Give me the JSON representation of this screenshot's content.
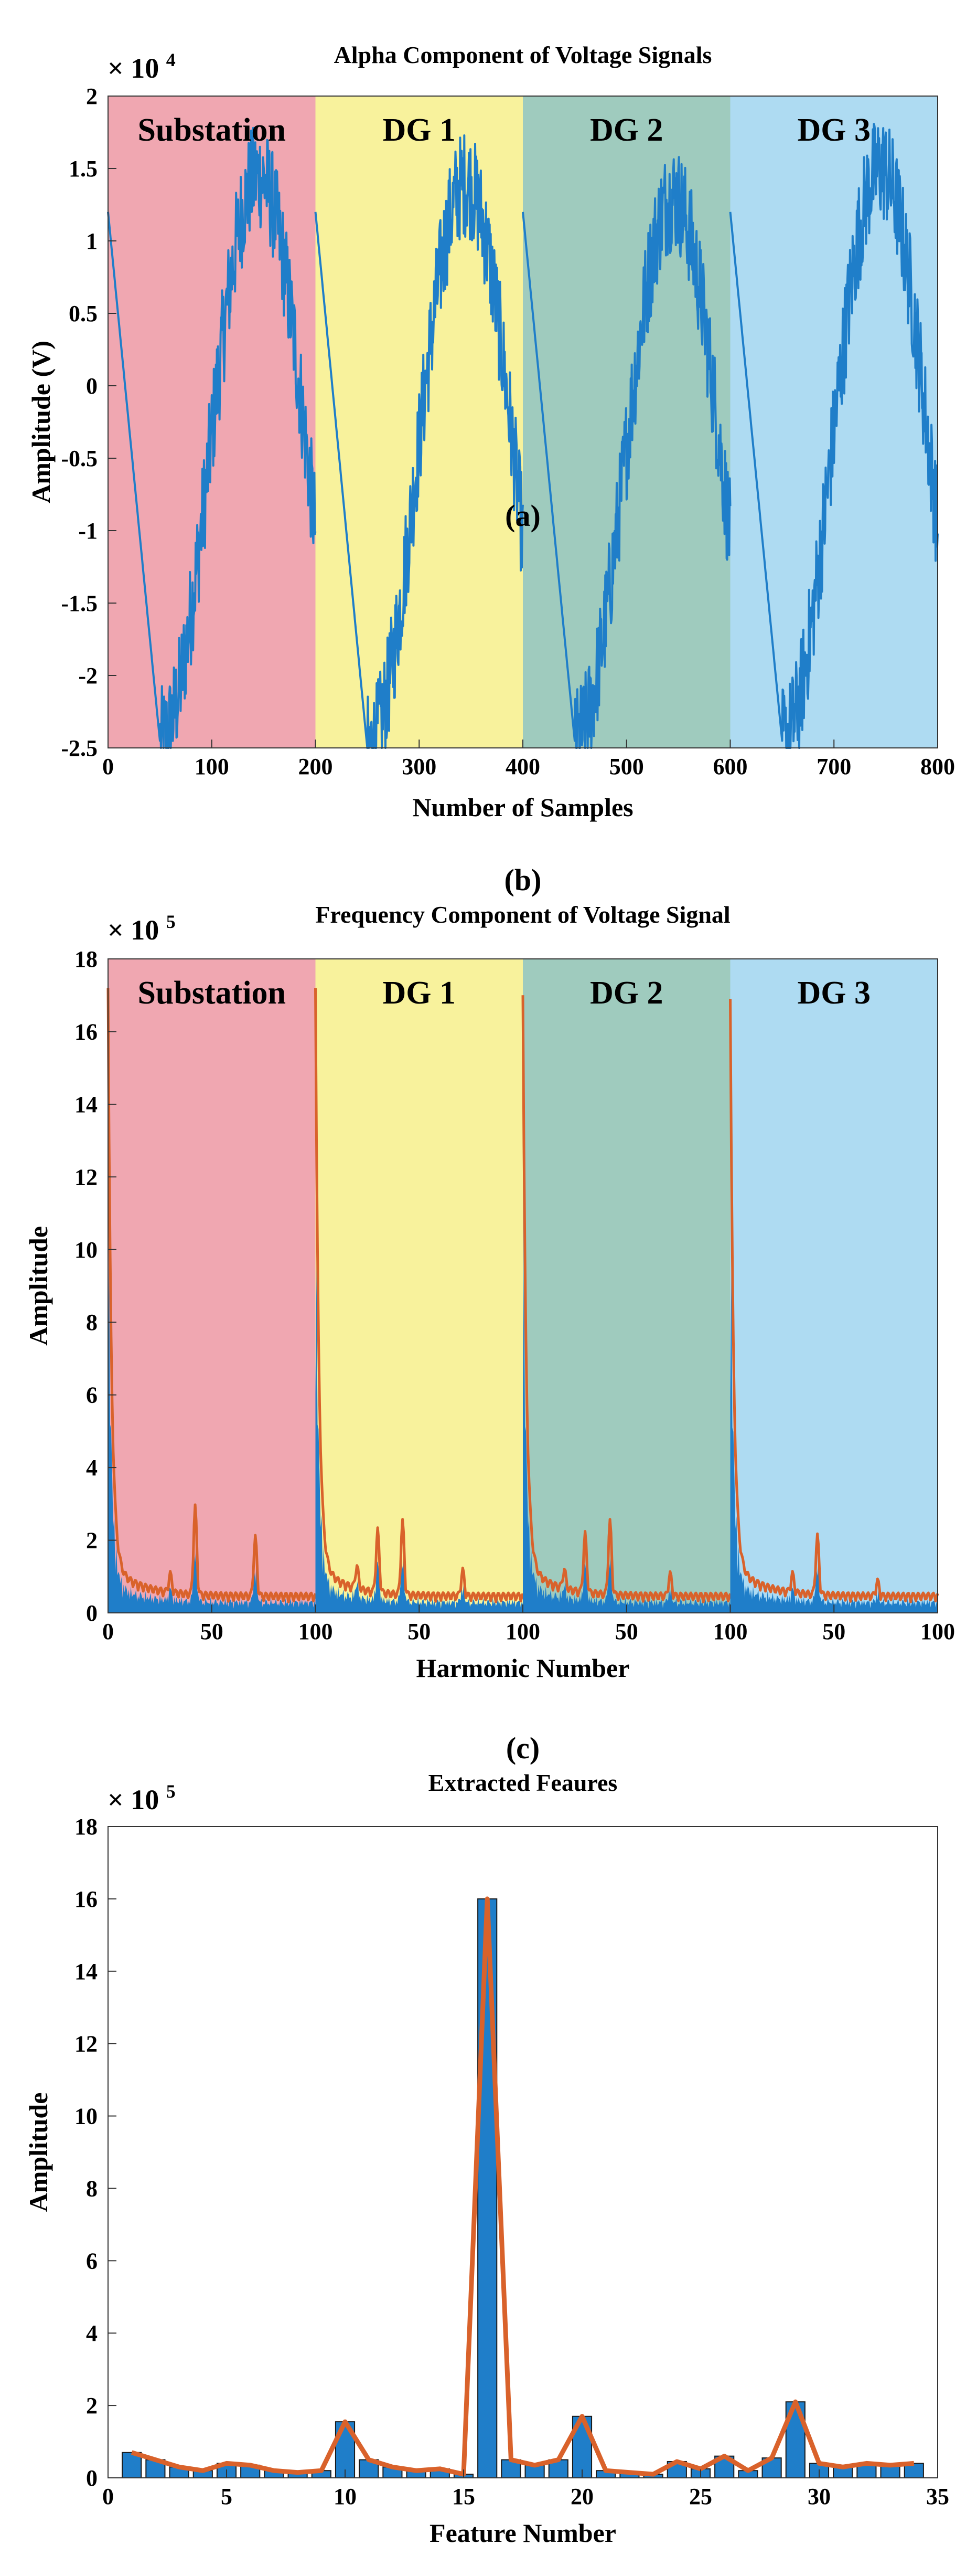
{
  "chart_data": [
    {
      "panel": "(a)",
      "type": "line",
      "title": "Alpha Component of Voltage Signals",
      "xlabel": "Number of Samples",
      "ylabel": "Amplitude (V)",
      "exponent_base": "× 10",
      "exponent_power": "4",
      "xlim": [
        0,
        800
      ],
      "ylim": [
        -2.5,
        2
      ],
      "xticks": [
        "0",
        "100",
        "200",
        "300",
        "400",
        "500",
        "600",
        "700",
        "800"
      ],
      "yticks": [
        "-2.5",
        "-2",
        "-1.5",
        "-1",
        "-0.5",
        "0",
        "0.5",
        "1",
        "1.5",
        "2"
      ],
      "regions": [
        {
          "label": "Substation",
          "start": 0,
          "end": 200,
          "color": "#f0a7b1"
        },
        {
          "label": "DG 1",
          "start": 200,
          "end": 400,
          "color": "#f8f29c"
        },
        {
          "label": "DG 2",
          "start": 400,
          "end": 600,
          "color": "#9fcbbe"
        },
        {
          "label": "DG 3",
          "start": 600,
          "end": 800,
          "color": "#aedbf2"
        }
      ],
      "series": [
        {
          "name": "alpha voltage",
          "color": "#1f7ec9",
          "segments": [
            {
              "start": 0,
              "start_value": 1.2,
              "min_at": 50,
              "min_value": -2.45,
              "peak_at": 150,
              "peak_value": 1.45,
              "end_value": 0.4
            },
            {
              "start": 200,
              "start_value": 1.2,
              "min_at": 250,
              "min_value": -2.5,
              "peak_at": 350,
              "peak_value": 1.4,
              "end_value": 0.3
            },
            {
              "start": 400,
              "start_value": 1.2,
              "min_at": 450,
              "min_value": -2.45,
              "peak_at": 550,
              "peak_value": 1.3,
              "end_value": 0.5
            },
            {
              "start": 600,
              "start_value": 1.2,
              "min_at": 650,
              "min_value": -2.45,
              "peak_at": 750,
              "peak_value": 1.5,
              "end_value": 0.0
            }
          ]
        }
      ]
    },
    {
      "panel": "(b)",
      "type": "area",
      "title": "Frequency Component of Voltage Signal",
      "xlabel": "Harmonic Number",
      "ylabel": "Amplitude",
      "exponent_base": "× 10",
      "exponent_power": "5",
      "xlim": [
        0,
        400
      ],
      "ylim": [
        0,
        18
      ],
      "xticks": [
        "0",
        "50",
        "100",
        "50",
        "100",
        "50",
        "100",
        "50",
        "100"
      ],
      "yticks": [
        "0",
        "2",
        "4",
        "6",
        "8",
        "10",
        "12",
        "14",
        "16",
        "18"
      ],
      "regions": [
        {
          "label": "Substation",
          "start": 0,
          "end": 100,
          "color": "#f0a7b1"
        },
        {
          "label": "DG 1",
          "start": 100,
          "end": 200,
          "color": "#f8f29c"
        },
        {
          "label": "DG 2",
          "start": 200,
          "end": 300,
          "color": "#9fcbbe"
        },
        {
          "label": "DG 3",
          "start": 300,
          "end": 400,
          "color": "#aedbf2"
        }
      ],
      "fill_color": "#1f7ec9",
      "line_color": "#d9622b",
      "fundamental_peaks": [
        16.0,
        16.0,
        15.8,
        15.7
      ],
      "harmonic_peaks": [
        [
          {
            "h": 42,
            "v": 2.4
          },
          {
            "h": 71,
            "v": 1.6
          },
          {
            "h": 30,
            "v": 0.5
          }
        ],
        [
          {
            "h": 30,
            "v": 1.7
          },
          {
            "h": 42,
            "v": 2.0
          },
          {
            "h": 71,
            "v": 0.7
          },
          {
            "h": 20,
            "v": 0.6
          }
        ],
        [
          {
            "h": 30,
            "v": 1.6
          },
          {
            "h": 42,
            "v": 2.0
          },
          {
            "h": 71,
            "v": 0.6
          },
          {
            "h": 20,
            "v": 0.5
          }
        ],
        [
          {
            "h": 42,
            "v": 1.6
          },
          {
            "h": 30,
            "v": 0.5
          },
          {
            "h": 71,
            "v": 0.4
          }
        ]
      ]
    },
    {
      "panel": "(c)",
      "type": "bar",
      "title": "Extracted Feaures",
      "xlabel": "Feature Number",
      "ylabel": "Amplitude",
      "exponent_base": "× 10",
      "exponent_power": "5",
      "xlim": [
        0,
        35
      ],
      "ylim": [
        0,
        18
      ],
      "xticks": [
        "0",
        "5",
        "10",
        "15",
        "20",
        "25",
        "30",
        "35"
      ],
      "yticks": [
        "0",
        "2",
        "4",
        "6",
        "8",
        "10",
        "12",
        "14",
        "16",
        "18"
      ],
      "bar_color": "#1f7ec9",
      "line_color": "#d9622b",
      "x": [
        1,
        2,
        3,
        4,
        5,
        6,
        7,
        8,
        9,
        10,
        11,
        12,
        13,
        14,
        15,
        16,
        17,
        18,
        19,
        20,
        21,
        22,
        23,
        24,
        25,
        26,
        27,
        28,
        29,
        30,
        31,
        32,
        33,
        34
      ],
      "values": [
        0.7,
        0.5,
        0.3,
        0.2,
        0.4,
        0.35,
        0.2,
        0.15,
        0.2,
        1.55,
        0.5,
        0.3,
        0.2,
        0.25,
        0.1,
        16.0,
        0.5,
        0.35,
        0.5,
        1.7,
        0.2,
        0.15,
        0.1,
        0.45,
        0.25,
        0.6,
        0.2,
        0.55,
        2.1,
        0.4,
        0.3,
        0.4,
        0.35,
        0.4
      ]
    }
  ]
}
